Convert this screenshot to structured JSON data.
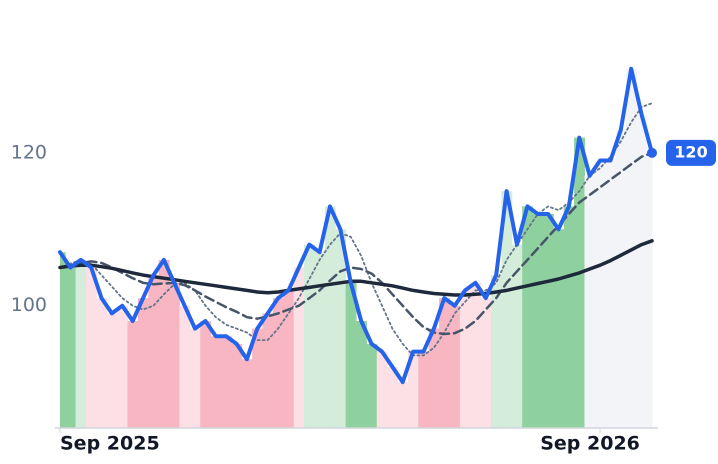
{
  "chart_data": {
    "type": "line",
    "x": [
      0,
      1,
      2,
      3,
      4,
      5,
      6,
      7,
      8,
      9,
      10,
      11,
      12,
      13,
      14,
      15,
      16,
      17,
      18,
      19,
      20,
      21,
      22,
      23,
      24,
      25,
      26,
      27,
      28,
      29,
      30,
      31,
      32,
      33,
      34,
      35,
      36,
      37,
      38,
      39,
      40,
      41,
      42,
      43,
      44,
      45,
      46,
      47,
      48,
      49,
      50,
      51,
      52,
      53,
      54,
      55,
      56,
      57
    ],
    "xlim": [
      0,
      57
    ],
    "xticks": [
      {
        "value": 0,
        "label": "Sep 2025"
      },
      {
        "value": 52,
        "label": "Sep 2026"
      }
    ],
    "ylim": [
      84,
      140
    ],
    "yticks": [
      100,
      120
    ],
    "band_colors": [
      "#8fd19e",
      "#8fd19e",
      "#d4eddb",
      "#fde0e6",
      "#fde0e6",
      "#fde0e6",
      "#fde0e6",
      "#f7b6c2",
      "#f7b6c2",
      "#f7b6c2",
      "#f7b6c2",
      "#f7b6c2",
      "#fde0e6",
      "#fde0e6",
      "#f7b6c2",
      "#f7b6c2",
      "#f7b6c2",
      "#f7b6c2",
      "#f7b6c2",
      "#f7b6c2",
      "#f7b6c2",
      "#f7b6c2",
      "#f7b6c2",
      "#fde0e6",
      "#d4eddb",
      "#d4eddb",
      "#d4eddb",
      "#d4eddb",
      "#8fd19e",
      "#8fd19e",
      "#8fd19e",
      "#fde0e6",
      "#fde0e6",
      "#fde0e6",
      "#fde0e6",
      "#f7b6c2",
      "#f7b6c2",
      "#f7b6c2",
      "#f7b6c2",
      "#fde0e6",
      "#fde0e6",
      "#fde0e6",
      "#d4eddb",
      "#d4eddb",
      "#d4eddb",
      "#8fd19e",
      "#8fd19e",
      "#8fd19e",
      "#8fd19e",
      "#8fd19e",
      "#8fd19e",
      "#f3f4f8",
      "#f3f4f8",
      "#f3f4f8",
      "#f3f4f8",
      "#f3f4f8",
      "#f3f4f8",
      "#f3f4f8"
    ],
    "series": [
      {
        "color": "#2563eb",
        "values": [
          107,
          105,
          106,
          105,
          101,
          99,
          100,
          98,
          101,
          104,
          106,
          103,
          100,
          97,
          98,
          96,
          96,
          95,
          93,
          97,
          99,
          101,
          102,
          105,
          108,
          107,
          113,
          110,
          103,
          98,
          95,
          94,
          92,
          90,
          94,
          94,
          97,
          101,
          100,
          102,
          103,
          101,
          104,
          115,
          108,
          113,
          112,
          112,
          110,
          113,
          122,
          117,
          119,
          119,
          123,
          131,
          125,
          120
        ]
      },
      {
        "color": "#1e293b",
        "values": [
          105,
          105.2,
          105.3,
          105.3,
          105.1,
          104.9,
          104.6,
          104.3,
          104,
          103.8,
          103.6,
          103.4,
          103.2,
          103,
          102.8,
          102.6,
          102.4,
          102.2,
          102,
          101.8,
          101.7,
          101.8,
          102,
          102.2,
          102.4,
          102.6,
          102.8,
          103,
          103.2,
          103.2,
          103,
          102.8,
          102.6,
          102.3,
          102,
          101.8,
          101.6,
          101.5,
          101.4,
          101.4,
          101.5,
          101.6,
          101.8,
          102,
          102.3,
          102.6,
          102.9,
          103.2,
          103.5,
          103.9,
          104.3,
          104.8,
          105.3,
          105.9,
          106.6,
          107.3,
          108,
          108.5
        ]
      },
      {
        "color": "#475569",
        "values": [
          105,
          105.3,
          105.6,
          105.8,
          105.6,
          105,
          104.3,
          103.6,
          103,
          102.8,
          102.9,
          103,
          102.7,
          102,
          101.2,
          100.5,
          99.8,
          99.2,
          98.5,
          98.3,
          98.6,
          99,
          99.5,
          100,
          101,
          102,
          103.3,
          104.5,
          105,
          104.8,
          104.2,
          103,
          101.5,
          100,
          98.5,
          97.2,
          96.5,
          96.3,
          96.4,
          97,
          98,
          99.5,
          101,
          103,
          104.5,
          106,
          107.5,
          109,
          110.5,
          112,
          113.5,
          114.5,
          115.5,
          116.5,
          117.5,
          118.5,
          119.5,
          120
        ]
      },
      {
        "color": "#64748b",
        "values": [
          105,
          105.5,
          106,
          105.5,
          104,
          102.5,
          101,
          100,
          99.5,
          100,
          101.5,
          102.8,
          103,
          102,
          100,
          98.5,
          97.5,
          97,
          96.5,
          95.5,
          95.5,
          97,
          99,
          101,
          103.5,
          106,
          108,
          109.5,
          109,
          106.5,
          103,
          100,
          97,
          95,
          93.5,
          93.5,
          94.5,
          96.5,
          99,
          100.5,
          102,
          102,
          103,
          106,
          108,
          110,
          112,
          113,
          112.5,
          113.5,
          115,
          117,
          118,
          119.5,
          121.5,
          124,
          126,
          126.5
        ]
      }
    ]
  }
}
